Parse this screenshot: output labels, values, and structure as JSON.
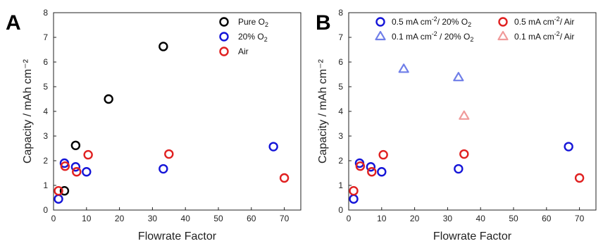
{
  "chart_data": [
    {
      "panel": "A",
      "type": "scatter",
      "xlabel": "Flowrate Factor",
      "ylabel": "Capacity / mAh cm⁻²",
      "xlim": [
        0,
        75
      ],
      "ylim": [
        0,
        8
      ],
      "xticks": [
        0,
        10,
        20,
        30,
        40,
        50,
        60,
        70
      ],
      "yticks": [
        0,
        1,
        2,
        3,
        4,
        5,
        6,
        7,
        8
      ],
      "legend": "top-right",
      "series": [
        {
          "name": "Pure O2",
          "color": "#000000",
          "marker": "circle",
          "points": [
            [
              3.3,
              0.78
            ],
            [
              6.7,
              2.62
            ],
            [
              16.7,
              4.5
            ],
            [
              33.3,
              6.63
            ]
          ]
        },
        {
          "name": "20% O2",
          "color": "#1515d8",
          "marker": "circle",
          "points": [
            [
              1.5,
              0.45
            ],
            [
              3.3,
              1.9
            ],
            [
              6.7,
              1.75
            ],
            [
              10,
              1.55
            ],
            [
              33.3,
              1.67
            ],
            [
              66.7,
              2.57
            ]
          ]
        },
        {
          "name": "Air",
          "color": "#e02020",
          "marker": "circle",
          "points": [
            [
              1.5,
              0.78
            ],
            [
              3.5,
              1.78
            ],
            [
              7,
              1.55
            ],
            [
              10.5,
              2.24
            ],
            [
              35,
              2.27
            ],
            [
              70,
              1.3
            ]
          ]
        }
      ]
    },
    {
      "panel": "B",
      "type": "scatter",
      "xlabel": "Flowrate Factor",
      "ylabel": "Capacity / mAh cm⁻²",
      "xlim": [
        0,
        75
      ],
      "ylim": [
        0,
        8
      ],
      "xticks": [
        0,
        10,
        20,
        30,
        40,
        50,
        60,
        70
      ],
      "yticks": [
        0,
        1,
        2,
        3,
        4,
        5,
        6,
        7,
        8
      ],
      "legend": "top",
      "series": [
        {
          "name": "0.5 mA cm-2/ 20% O2",
          "color": "#1515d8",
          "marker": "circle",
          "points": [
            [
              1.5,
              0.45
            ],
            [
              3.3,
              1.9
            ],
            [
              6.7,
              1.75
            ],
            [
              10,
              1.55
            ],
            [
              33.3,
              1.67
            ],
            [
              66.7,
              2.57
            ]
          ]
        },
        {
          "name": "0.1 mA cm-2 / 20% O2",
          "color": "#6f7ee8",
          "marker": "triangle",
          "points": [
            [
              16.7,
              5.72
            ],
            [
              33.3,
              5.38
            ]
          ]
        },
        {
          "name": "0.5 mA cm-2/ Air",
          "color": "#e02020",
          "marker": "circle",
          "points": [
            [
              1.5,
              0.78
            ],
            [
              3.5,
              1.78
            ],
            [
              7,
              1.55
            ],
            [
              10.5,
              2.24
            ],
            [
              35,
              2.27
            ],
            [
              70,
              1.3
            ]
          ]
        },
        {
          "name": "0.1 mA cm-2/ Air",
          "color": "#f09a9a",
          "marker": "triangle",
          "points": [
            [
              35,
              3.82
            ]
          ]
        }
      ]
    }
  ]
}
